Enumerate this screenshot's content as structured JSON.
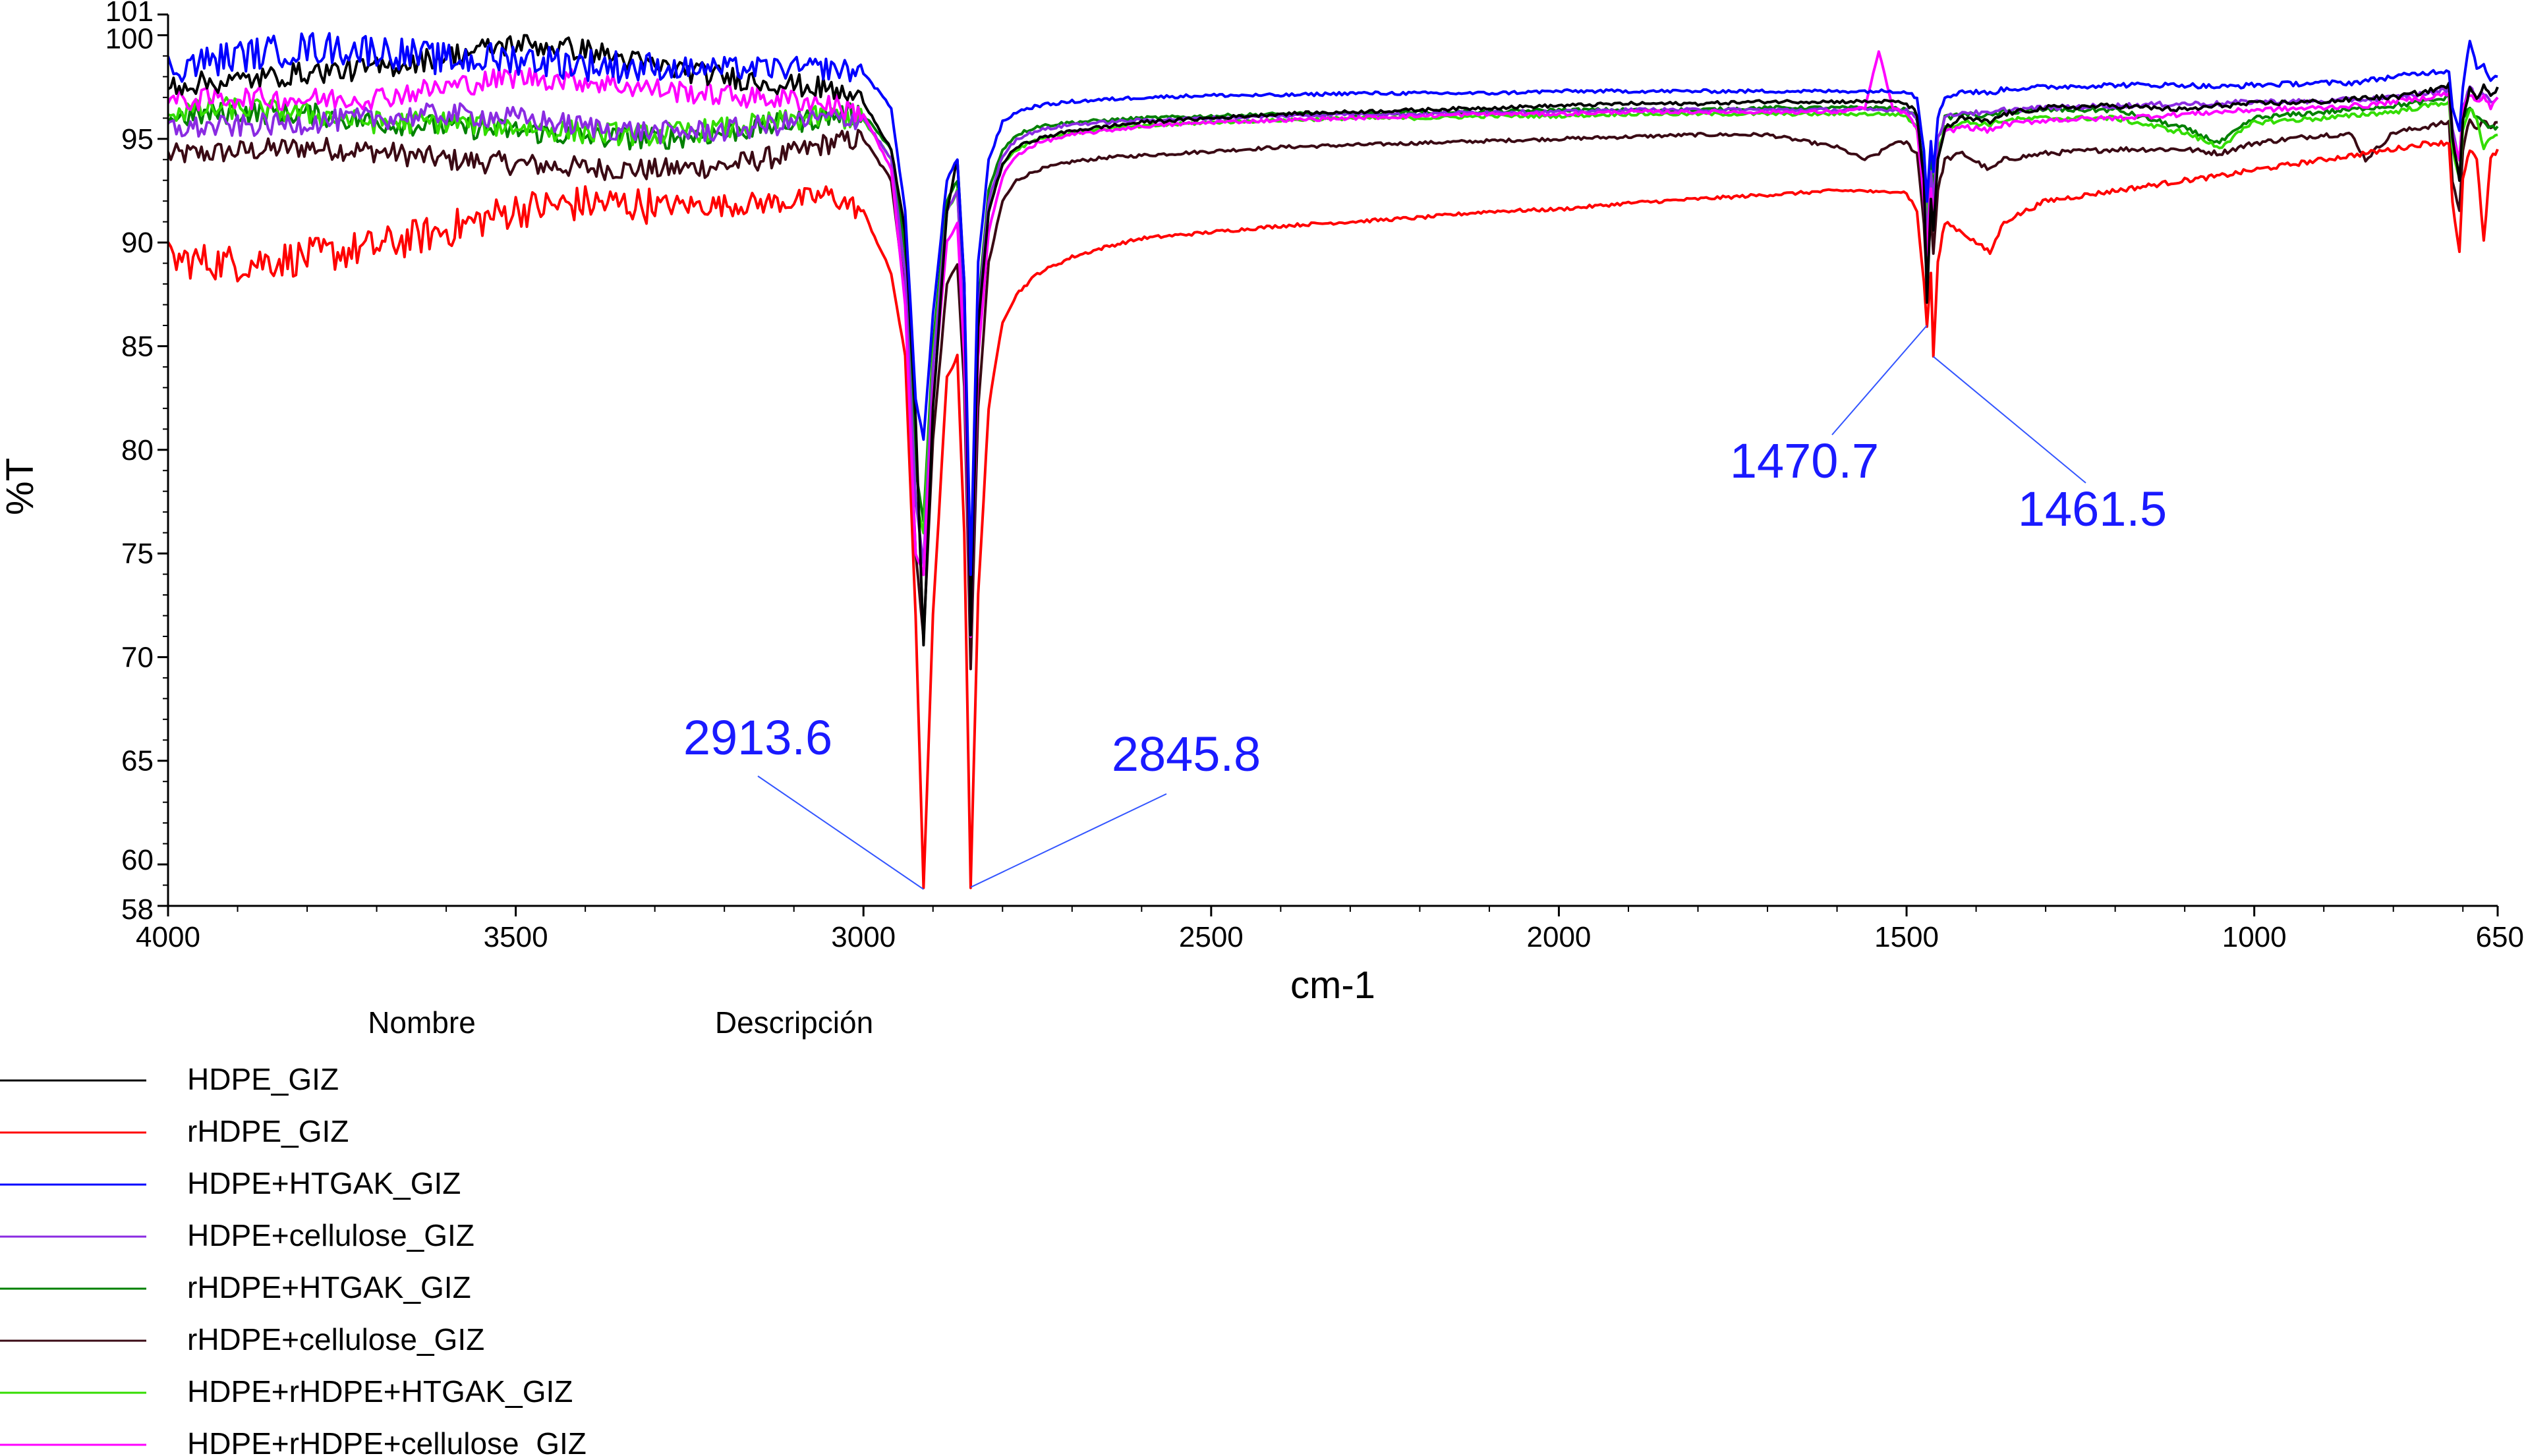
{
  "chart_data": {
    "type": "line",
    "title": "",
    "xlabel": "cm-1",
    "ylabel": "%T",
    "xlim": [
      4000,
      650
    ],
    "ylim": [
      58,
      101
    ],
    "x_ticks": [
      4000,
      3500,
      3000,
      2500,
      2000,
      1500,
      1000,
      650
    ],
    "y_ticks": [
      58,
      60,
      65,
      70,
      75,
      80,
      85,
      90,
      95,
      100,
      101
    ],
    "grid": false,
    "legend": {
      "placement": "bottom-left",
      "header_name": "Nombre",
      "header_description": "Descripción"
    },
    "annotations": [
      {
        "text": "2913.6",
        "x": 2913.6,
        "y": 58.8,
        "color": "#1a1aff"
      },
      {
        "text": "2845.8",
        "x": 2845.8,
        "y": 58.9,
        "color": "#1a1aff"
      },
      {
        "text": "1470.7",
        "x": 1470.7,
        "y": 86.0,
        "color": "#1a1aff"
      },
      {
        "text": "1461.5",
        "x": 1461.5,
        "y": 84.5,
        "color": "#1a1aff"
      }
    ],
    "x": [
      4000,
      3900,
      3800,
      3700,
      3600,
      3500,
      3400,
      3300,
      3200,
      3100,
      3050,
      3000,
      2960,
      2940,
      2925,
      2913.6,
      2900,
      2880,
      2865,
      2855,
      2845.8,
      2835,
      2820,
      2800,
      2780,
      2750,
      2700,
      2650,
      2600,
      2500,
      2400,
      2300,
      2200,
      2100,
      2000,
      1900,
      1800,
      1700,
      1600,
      1560,
      1540,
      1520,
      1500,
      1485,
      1475,
      1470.7,
      1465,
      1461.5,
      1455,
      1445,
      1420,
      1380,
      1360,
      1300,
      1200,
      1100,
      1050,
      1000,
      900,
      860,
      840,
      800,
      750,
      720,
      715,
      705,
      700,
      690,
      680,
      670,
      660,
      650
    ],
    "series": [
      {
        "name": "HDPE_GIZ",
        "color": "#000000",
        "values": [
          97.6,
          97.8,
          98.2,
          98.4,
          99.0,
          99.6,
          99.3,
          98.5,
          98.0,
          97.6,
          97.4,
          96.8,
          94.5,
          90.5,
          81.5,
          70.5,
          82.0,
          91.5,
          94.0,
          88.0,
          71.0,
          86.0,
          91.5,
          93.8,
          94.6,
          95.0,
          95.4,
          95.6,
          95.8,
          96.0,
          96.2,
          96.3,
          96.4,
          96.5,
          96.6,
          96.7,
          96.7,
          96.8,
          96.8,
          96.8,
          96.8,
          96.8,
          96.7,
          96.2,
          93.0,
          87.0,
          92.0,
          90.5,
          94.0,
          95.5,
          96.0,
          95.8,
          96.2,
          96.5,
          96.6,
          96.4,
          96.6,
          96.7,
          96.8,
          96.9,
          97.0,
          97.0,
          97.3,
          97.6,
          95.0,
          93.0,
          96.0,
          97.5,
          97.0,
          97.6,
          97.0,
          97.5
        ]
      },
      {
        "name": "rHDPE_GIZ",
        "color": "#ff0000",
        "values": [
          89.2,
          89.0,
          89.3,
          89.8,
          90.6,
          91.6,
          91.9,
          91.8,
          91.8,
          92.0,
          92.3,
          91.5,
          88.5,
          84.5,
          72.0,
          58.8,
          72.0,
          83.5,
          84.5,
          76.0,
          58.9,
          73.0,
          82.0,
          86.2,
          87.5,
          88.5,
          89.3,
          89.8,
          90.2,
          90.5,
          90.8,
          91.0,
          91.2,
          91.5,
          91.6,
          91.9,
          92.1,
          92.3,
          92.5,
          92.5,
          92.4,
          92.5,
          92.4,
          91.5,
          88.0,
          86.0,
          88.5,
          84.5,
          89.0,
          91.0,
          90.5,
          89.5,
          91.0,
          92.0,
          92.5,
          93.0,
          93.2,
          93.5,
          94.0,
          94.2,
          94.3,
          94.5,
          94.8,
          94.8,
          92.0,
          89.5,
          93.0,
          94.5,
          94.0,
          90.0,
          94.0,
          94.5
        ]
      },
      {
        "name": "HDPE+HTGAK_GIZ",
        "color": "#0000ff",
        "values": [
          98.4,
          99.0,
          99.4,
          99.3,
          98.8,
          98.9,
          98.6,
          98.4,
          98.4,
          98.4,
          98.4,
          98.2,
          96.5,
          91.5,
          82.5,
          80.5,
          86.5,
          93.0,
          94.0,
          88.0,
          74.0,
          89.0,
          94.0,
          95.8,
          96.3,
          96.6,
          96.8,
          96.9,
          97.0,
          97.1,
          97.1,
          97.2,
          97.2,
          97.2,
          97.3,
          97.3,
          97.3,
          97.3,
          97.3,
          97.3,
          97.3,
          97.3,
          97.3,
          97.0,
          94.5,
          92.0,
          95.0,
          93.5,
          96.0,
          97.0,
          97.3,
          97.2,
          97.4,
          97.5,
          97.6,
          97.6,
          97.5,
          97.6,
          97.7,
          97.7,
          97.8,
          98.0,
          98.2,
          98.3,
          96.5,
          95.5,
          97.5,
          99.8,
          98.5,
          98.5,
          97.8,
          98.0
        ]
      },
      {
        "name": "HDPE+cellulose_GIZ",
        "color": "#8a2be2",
        "values": [
          95.5,
          95.6,
          95.8,
          96.0,
          96.2,
          96.0,
          95.6,
          95.3,
          95.4,
          95.8,
          96.0,
          96.0,
          94.0,
          88.5,
          77.5,
          74.5,
          84.0,
          91.5,
          92.5,
          86.0,
          72.5,
          86.5,
          92.0,
          94.2,
          95.0,
          95.4,
          95.7,
          95.8,
          95.9,
          96.0,
          96.1,
          96.2,
          96.2,
          96.3,
          96.3,
          96.4,
          96.4,
          96.4,
          96.4,
          96.4,
          96.4,
          96.4,
          96.4,
          96.0,
          93.0,
          90.0,
          93.5,
          92.0,
          95.0,
          96.0,
          96.3,
          96.2,
          96.4,
          96.5,
          96.6,
          96.7,
          96.7,
          96.8,
          96.8,
          96.9,
          96.9,
          97.0,
          97.2,
          97.4,
          95.5,
          94.0,
          96.5,
          97.5,
          97.0,
          97.2,
          96.8,
          97.0
        ]
      },
      {
        "name": "rHDPE+HTGAK_GIZ",
        "color": "#008000",
        "values": [
          96.0,
          96.3,
          96.2,
          95.8,
          95.6,
          95.4,
          95.1,
          95.0,
          95.3,
          95.8,
          96.1,
          96.2,
          94.5,
          89.5,
          79.0,
          76.5,
          85.0,
          92.0,
          93.0,
          86.5,
          73.0,
          87.0,
          92.5,
          94.5,
          95.2,
          95.6,
          95.8,
          95.9,
          96.0,
          96.1,
          96.2,
          96.2,
          96.3,
          96.3,
          96.4,
          96.4,
          96.4,
          96.5,
          96.5,
          96.5,
          96.5,
          96.5,
          96.4,
          96.0,
          93.5,
          91.0,
          94.0,
          92.5,
          95.0,
          96.0,
          96.2,
          96.1,
          96.3,
          96.4,
          96.4,
          95.5,
          94.8,
          96.0,
          96.3,
          96.4,
          96.5,
          96.6,
          96.8,
          97.0,
          95.0,
          94.0,
          96.0,
          96.5,
          96.0,
          95.8,
          95.5,
          95.6
        ]
      },
      {
        "name": "rHDPE+cellulose_GIZ",
        "color": "#3a0a14",
        "values": [
          94.2,
          94.4,
          94.6,
          94.4,
          94.0,
          93.8,
          93.6,
          93.5,
          93.7,
          94.3,
          94.8,
          95.0,
          93.0,
          87.5,
          75.0,
          71.0,
          80.5,
          88.0,
          89.0,
          83.0,
          69.5,
          82.0,
          89.0,
          92.0,
          93.0,
          93.5,
          93.9,
          94.1,
          94.2,
          94.4,
          94.6,
          94.7,
          94.8,
          94.9,
          95.0,
          95.1,
          95.2,
          95.2,
          94.6,
          94.0,
          94.3,
          94.8,
          94.8,
          94.3,
          91.0,
          88.0,
          91.5,
          89.5,
          92.5,
          94.0,
          94.3,
          93.5,
          94.0,
          94.3,
          94.5,
          94.5,
          94.3,
          94.8,
          95.2,
          95.2,
          94.0,
          95.3,
          95.6,
          95.8,
          93.0,
          91.5,
          94.5,
          96.0,
          95.5,
          95.8,
          95.6,
          95.8
        ]
      },
      {
        "name": "HDPE+rHDPE+HTGAK_GIZ",
        "color": "#33dd00",
        "values": [
          96.3,
          96.5,
          96.2,
          95.8,
          95.8,
          95.6,
          95.3,
          95.2,
          95.5,
          95.9,
          96.1,
          95.9,
          94.0,
          88.5,
          77.5,
          76.0,
          84.5,
          91.5,
          92.5,
          86.0,
          72.0,
          86.0,
          91.5,
          93.8,
          94.5,
          95.0,
          95.3,
          95.5,
          95.6,
          95.8,
          95.9,
          96.0,
          96.0,
          96.1,
          96.1,
          96.2,
          96.2,
          96.2,
          96.2,
          96.2,
          96.2,
          96.2,
          96.1,
          95.5,
          93.0,
          91.0,
          93.5,
          92.0,
          94.5,
          95.5,
          95.8,
          95.7,
          95.9,
          96.0,
          96.0,
          95.3,
          94.6,
          95.8,
          96.0,
          96.1,
          96.2,
          96.3,
          96.6,
          96.8,
          94.5,
          93.0,
          95.5,
          96.5,
          96.0,
          94.5,
          95.0,
          95.2
        ]
      },
      {
        "name": "HDPE+rHDPE+cellulose_GIZ",
        "color": "#ff00ff",
        "values": [
          96.8,
          97.0,
          96.9,
          97.0,
          97.5,
          98.0,
          97.8,
          97.4,
          97.1,
          96.9,
          96.7,
          96.2,
          93.5,
          87.0,
          75.0,
          74.0,
          82.5,
          90.0,
          91.0,
          84.5,
          71.0,
          84.5,
          90.5,
          93.2,
          94.2,
          94.8,
          95.2,
          95.4,
          95.6,
          95.8,
          95.9,
          96.0,
          96.1,
          96.2,
          96.2,
          96.3,
          96.3,
          96.3,
          96.3,
          96.5,
          99.2,
          96.5,
          96.2,
          95.5,
          92.0,
          89.5,
          92.5,
          91.0,
          94.0,
          95.3,
          95.6,
          95.4,
          95.7,
          95.9,
          96.0,
          96.2,
          96.3,
          96.4,
          96.5,
          96.6,
          96.6,
          96.8,
          97.0,
          97.2,
          95.0,
          94.0,
          96.5,
          97.2,
          96.8,
          97.0,
          96.5,
          97.0
        ]
      }
    ]
  }
}
